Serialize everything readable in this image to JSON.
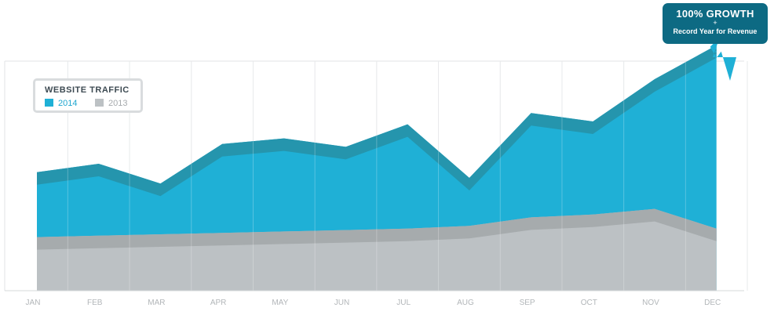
{
  "chart_data": {
    "type": "area",
    "categories": [
      "JAN",
      "FEB",
      "MAR",
      "APR",
      "MAY",
      "JUN",
      "JUL",
      "AUG",
      "SEP",
      "OCT",
      "NOV",
      "DEC"
    ],
    "ylim": [
      0,
      100
    ],
    "grid": true,
    "legend": {
      "title": "WEBSITE TRAFFIC",
      "placement": "top-left",
      "entries": [
        {
          "label": "2014",
          "color": "#1fb0d6"
        },
        {
          "label": "2013",
          "color": "#bcc1c4"
        }
      ]
    },
    "series": [
      {
        "name": "2014",
        "color": "#1fb0d6",
        "edge_color": "#2595ad",
        "values": [
          42,
          45,
          38,
          52,
          54,
          51,
          59,
          40,
          63,
          60,
          75,
          87
        ]
      },
      {
        "name": "2013",
        "color": "#bcc1c4",
        "edge_color": "#a6abad",
        "values": [
          19,
          19.5,
          20,
          20.5,
          21,
          21.5,
          22,
          23,
          26,
          27,
          29,
          22
        ]
      }
    ],
    "annotation": {
      "title": "100% GROWTH",
      "plus": "+",
      "text": "Record Year for Revenue",
      "color": "#0d6a83"
    }
  }
}
